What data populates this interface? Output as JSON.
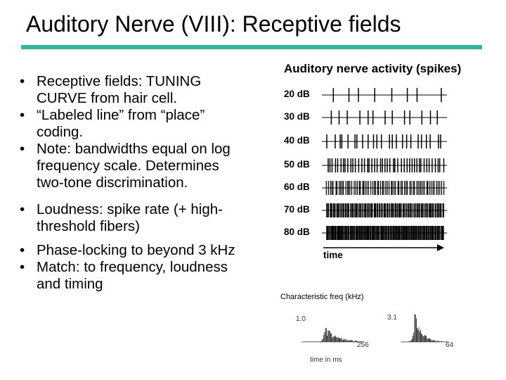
{
  "slide": {
    "title": "Auditory Nerve (VIII): Receptive fields",
    "bullets": [
      "Receptive fields: TUNING CURVE from hair cell.",
      "“Labeled line” from “place” coding.",
      "Note: bandwidths equal on log frequency scale. Determines two-tone discrimination.",
      "Loudness: spike rate (+ high-threshold fibers)",
      "Phase-locking to beyond 3 kHz",
      "Match: to frequency, loudness and timing"
    ]
  },
  "spike_figure": {
    "title": "Auditory nerve activity (spikes)",
    "rows": [
      {
        "level": "20 dB",
        "spike_count": 8
      },
      {
        "level": "30 dB",
        "spike_count": 13
      },
      {
        "level": "40 dB",
        "spike_count": 24
      },
      {
        "level": "50 dB",
        "spike_count": 45
      },
      {
        "level": "60 dB",
        "spike_count": 70
      },
      {
        "level": "70 dB",
        "spike_count": 110
      },
      {
        "level": "80 dB",
        "spike_count": 150
      }
    ],
    "axis_label": "time"
  },
  "histogram_figure": {
    "caption": "Characteristic freq (kHz)",
    "panels": [
      {
        "freq_label": "1.0",
        "axis_tick": "256"
      },
      {
        "freq_label": "3.1",
        "axis_tick": "64"
      }
    ],
    "x_label": "time in ms"
  }
}
